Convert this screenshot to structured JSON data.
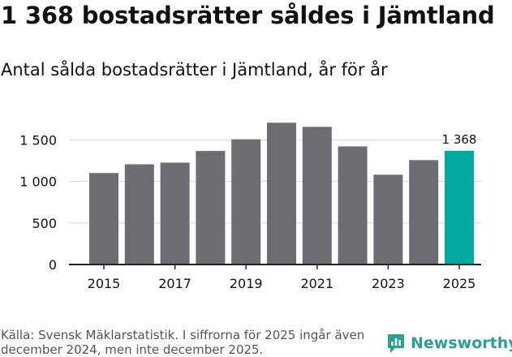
{
  "title": "1 368 bostadsrätter såldes i Jämtland",
  "subtitle": "Antal sålda bostadsrätter i Jämtland, år för år",
  "source": "Källa: Svensk Mäklarstatistik. I siffrorna för 2025 ingår även december 2024, men inte december 2025.",
  "logo_text": "Newsworthy",
  "colors": {
    "bar": "#6d6c72",
    "highlight": "#00a99d",
    "grid": "#d9d9d9",
    "axis": "#222222",
    "brand": "#2f9e93"
  },
  "chart_data": {
    "type": "bar",
    "title": "Antal sålda bostadsrätter i Jämtland, år för år",
    "xlabel": "",
    "ylabel": "",
    "categories": [
      "2015",
      "2016",
      "2017",
      "2018",
      "2019",
      "2020",
      "2021",
      "2022",
      "2023",
      "2024",
      "2025"
    ],
    "values": [
      1100,
      1205,
      1225,
      1365,
      1505,
      1705,
      1655,
      1420,
      1080,
      1255,
      1368
    ],
    "highlight_index": 10,
    "data_labels": [
      {
        "index": 10,
        "text": "1 368"
      }
    ],
    "x_tick_labels": [
      "2015",
      "2017",
      "2019",
      "2021",
      "2023",
      "2025"
    ],
    "y_ticks": [
      0,
      500,
      1000,
      1500
    ],
    "y_tick_labels": [
      "0",
      "500",
      "1 000",
      "1 500"
    ],
    "ylim": [
      0,
      1750
    ],
    "grid": true
  }
}
